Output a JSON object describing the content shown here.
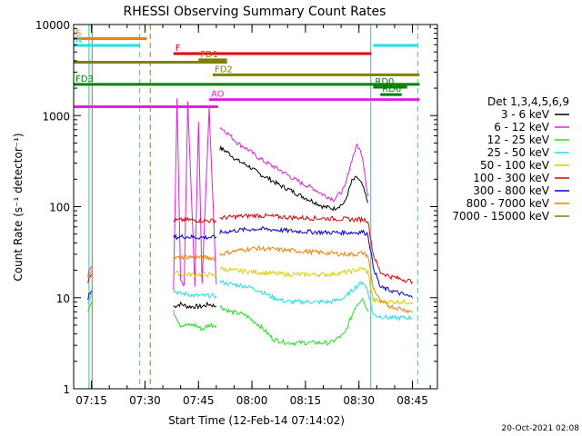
{
  "chart_data": {
    "type": "line",
    "title": "RHESSI Observing Summary Count Rates",
    "xlabel": "Start Time (12-Feb-14 07:14:02)",
    "ylabel": "Count Rate (s⁻¹ detector⁻¹)",
    "xlim_minutes_after_0714": [
      -4,
      98
    ],
    "ylim": [
      1,
      10000
    ],
    "yscale": "log",
    "x_ticks": [
      {
        "label": "07:15",
        "minutes_after_0714": 1
      },
      {
        "label": "07:30",
        "minutes_after_0714": 16
      },
      {
        "label": "07:45",
        "minutes_after_0714": 31
      },
      {
        "label": "08:00",
        "minutes_after_0714": 46
      },
      {
        "label": "08:15",
        "minutes_after_0714": 61
      },
      {
        "label": "08:30",
        "minutes_after_0714": 76
      },
      {
        "label": "08:45",
        "minutes_after_0714": 91
      }
    ],
    "y_ticks": [
      {
        "label": "1",
        "value": 1
      },
      {
        "label": "10",
        "value": 10
      },
      {
        "label": "100",
        "value": 100
      },
      {
        "label": "1000",
        "value": 1000
      },
      {
        "label": "10000",
        "value": 10000
      }
    ],
    "legend": {
      "title": "Det 1,3,4,5,6,9",
      "placement": "right",
      "entries": [
        {
          "label": "3 - 6 keV",
          "color": "#000000"
        },
        {
          "label": "6 - 12 keV",
          "color": "#e020e0"
        },
        {
          "label": "12 - 25 keV",
          "color": "#20e020"
        },
        {
          "label": "25 - 50 keV",
          "color": "#20e0e0"
        },
        {
          "label": "50 - 100 keV",
          "color": "#d8d000"
        },
        {
          "label": "100 - 300 keV",
          "color": "#e00000"
        },
        {
          "label": "300 - 800 keV",
          "color": "#0000d0"
        },
        {
          "label": "800 - 7000 keV",
          "color": "#f08000"
        },
        {
          "label": "7000 - 15000 keV",
          "color": "#808000"
        }
      ]
    },
    "series": [
      {
        "name": "3 - 6 keV",
        "color": "#000000",
        "segments": [
          {
            "x": [
              24,
              26,
              28,
              30,
              32,
              34,
              36
            ],
            "y": [
              8,
              8.5,
              8,
              8,
              8,
              8.5,
              8
            ]
          },
          {
            "x": [
              37,
              39,
              42,
              45,
              48,
              51,
              54,
              57,
              60,
              63,
              66,
              69,
              72,
              74,
              75.5,
              77,
              78.5
            ],
            "y": [
              440,
              400,
              320,
              280,
              230,
              200,
              170,
              150,
              130,
              115,
              100,
              95,
              110,
              190,
              210,
              170,
              110
            ]
          }
        ]
      },
      {
        "name": "6 - 12 keV",
        "color": "#e020e0",
        "segments": [
          {
            "x": [
              0,
              1
            ],
            "y": [
              18,
              22
            ]
          },
          {
            "x": [
              24,
              25,
              26,
              27,
              28,
              30,
              31,
              32,
              34,
              36
            ],
            "y": [
              12,
              1500,
              15,
              14,
              1400,
              14,
              900,
              14,
              1200,
              14
            ]
          },
          {
            "x": [
              37,
              39,
              42,
              45,
              48,
              51,
              54,
              57,
              60,
              63,
              66,
              69,
              72,
              74,
              75.5,
              77,
              78.5
            ],
            "y": [
              750,
              650,
              500,
              420,
              340,
              290,
              250,
              210,
              180,
              160,
              135,
              120,
              160,
              330,
              480,
              360,
              130
            ]
          }
        ]
      },
      {
        "name": "12 - 25 keV",
        "color": "#20e020",
        "segments": [
          {
            "x": [
              0,
              1
            ],
            "y": [
              7,
              9
            ]
          },
          {
            "x": [
              24,
              26,
              28,
              30,
              32,
              34,
              36
            ],
            "y": [
              7,
              5,
              5,
              5,
              4.5,
              5,
              5
            ]
          },
          {
            "x": [
              37,
              40,
              44,
              48,
              52,
              56,
              60,
              64,
              68,
              72,
              75,
              77,
              78.5
            ],
            "y": [
              8,
              7,
              6.5,
              5,
              3.5,
              3.2,
              3.2,
              3.2,
              3.2,
              4,
              8,
              10,
              7
            ]
          }
        ]
      },
      {
        "name": "25 - 50 keV",
        "color": "#20e0e0",
        "segments": [
          {
            "x": [
              0,
              1
            ],
            "y": [
              9,
              11
            ]
          },
          {
            "x": [
              24,
              26,
              28,
              30,
              32,
              34,
              36
            ],
            "y": [
              12,
              11,
              11,
              10.5,
              10.5,
              10.5,
              10.5
            ]
          },
          {
            "x": [
              37,
              40,
              44,
              48,
              52,
              56,
              60,
              64,
              68,
              72,
              75,
              77,
              78.5,
              80,
              82,
              85,
              88,
              91
            ],
            "y": [
              15,
              14,
              13.5,
              12,
              10,
              9,
              9,
              9,
              9,
              10,
              13,
              15,
              12,
              6.5,
              6.2,
              6,
              6,
              6
            ]
          }
        ]
      },
      {
        "name": "50 - 100 keV",
        "color": "#d8d000",
        "segments": [
          {
            "x": [
              24,
              27,
              30,
              33,
              36
            ],
            "y": [
              19,
              18,
              18,
              18,
              17.5
            ]
          },
          {
            "x": [
              37,
              40,
              44,
              48,
              52,
              56,
              60,
              64,
              68,
              72,
              75,
              77,
              78.5,
              80,
              82,
              85,
              88,
              91
            ],
            "y": [
              21,
              20,
              19.5,
              19,
              18.5,
              18,
              18,
              18,
              18,
              19,
              20,
              21,
              19,
              9.5,
              9,
              9,
              9,
              9
            ]
          }
        ]
      },
      {
        "name": "100 - 300 keV",
        "color": "#e00000",
        "segments": [
          {
            "x": [
              0,
              1
            ],
            "y": [
              15,
              18
            ]
          },
          {
            "x": [
              24,
              27,
              30,
              33,
              36
            ],
            "y": [
              70,
              72,
              71,
              70,
              70
            ]
          },
          {
            "x": [
              37,
              42,
              47,
              52,
              57,
              62,
              67,
              72,
              75,
              77,
              78.5,
              80,
              82,
              85,
              88,
              91
            ],
            "y": [
              75,
              78,
              80,
              78,
              76,
              75,
              74,
              73,
              72,
              73,
              70,
              30,
              19,
              17,
              16,
              15
            ]
          }
        ]
      },
      {
        "name": "300 - 800 keV",
        "color": "#0000d0",
        "segments": [
          {
            "x": [
              0,
              1
            ],
            "y": [
              10,
              12
            ]
          },
          {
            "x": [
              24,
              27,
              30,
              33,
              36
            ],
            "y": [
              46,
              47,
              46,
              46,
              46
            ]
          },
          {
            "x": [
              37,
              42,
              47,
              52,
              57,
              62,
              67,
              72,
              75,
              77,
              78.5,
              80,
              82,
              85,
              88,
              91
            ],
            "y": [
              52,
              55,
              57,
              56,
              54,
              53,
              52,
              52,
              52,
              53,
              50,
              22,
              13,
              12,
              11,
              10
            ]
          }
        ]
      },
      {
        "name": "800 - 7000 keV",
        "color": "#f08000",
        "segments": [
          {
            "x": [
              0,
              1
            ],
            "y": [
              17,
              20
            ]
          },
          {
            "x": [
              24,
              27,
              30,
              33,
              36
            ],
            "y": [
              27,
              28,
              28,
              27.5,
              27
            ]
          },
          {
            "x": [
              37,
              42,
              47,
              52,
              57,
              62,
              67,
              72,
              75,
              77,
              78.5,
              80,
              82,
              85,
              88,
              91
            ],
            "y": [
              30,
              33,
              35,
              34,
              33,
              32,
              31,
              30,
              30,
              31,
              29,
              13,
              9,
              8,
              7.5,
              7
            ]
          }
        ]
      }
    ],
    "time_markers": [
      {
        "color": "#20e0e0",
        "style": "solid",
        "x": 0.3
      },
      {
        "color": "#f08000",
        "style": "solid",
        "x": 1.2
      },
      {
        "color": "#20e0e0",
        "style": "dashed",
        "x": 14.5
      },
      {
        "color": "#f08000",
        "style": "dashed",
        "x": 17.5
      },
      {
        "color": "#20e0e0",
        "style": "solid",
        "x": 79.3
      },
      {
        "color": "#20e0e0",
        "style": "dashed",
        "x": 92.5
      }
    ],
    "flag_bars": [
      {
        "label": "S",
        "color": "#f08000",
        "x": [
          -4,
          16.5
        ],
        "y": 7000
      },
      {
        "label": "N",
        "color": "#20e0e0",
        "x": [
          -4,
          14.5
        ],
        "y": 5900
      },
      {
        "label": "",
        "color": "#20e0e0",
        "x": [
          80,
          92.5
        ],
        "y": 5900
      },
      {
        "label": "F",
        "color": "#e00000",
        "x": [
          24,
          79.5
        ],
        "y": 4800
      },
      {
        "label": "FD1",
        "color": "#808000",
        "x": [
          31,
          39
        ],
        "y": 4100
      },
      {
        "label": "",
        "color": "#808000",
        "x": [
          -4,
          39
        ],
        "y": 3850
      },
      {
        "label": "FD2",
        "color": "#808000",
        "x": [
          35,
          93
        ],
        "y": 2800
      },
      {
        "label": "FD3",
        "color": "#008000",
        "x": [
          -4,
          93
        ],
        "y": 2200
      },
      {
        "label": "RD0",
        "color": "#008000",
        "x": [
          80,
          89.5
        ],
        "y": 2050
      },
      {
        "label": "RD6",
        "color": "#008000",
        "x": [
          82,
          88
        ],
        "y": 1700
      },
      {
        "label": "AO",
        "color": "#e020e0",
        "x": [
          34,
          93
        ],
        "y": 1500
      },
      {
        "label": "",
        "color": "#e020e0",
        "x": [
          -4,
          36.5
        ],
        "y": 1250
      }
    ],
    "timestamp": "20-Oct-2021 02:08"
  }
}
